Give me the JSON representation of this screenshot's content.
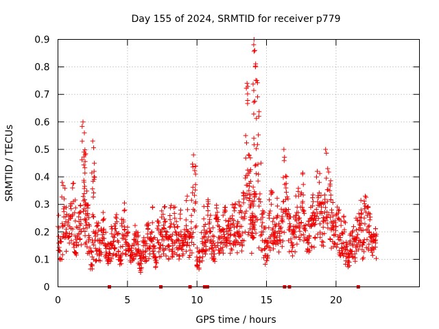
{
  "chart_data": {
    "type": "scatter",
    "title": "Day 155 of 2024, SRMTID for receiver p779",
    "xlabel": "GPS time / hours",
    "ylabel": "SRMTID / TECUs",
    "xlim": [
      0,
      26
    ],
    "ylim": [
      0,
      0.9
    ],
    "x_ticks": [
      0,
      5,
      10,
      15,
      20
    ],
    "x_tick_labels": [
      "0",
      "5",
      "10",
      "15",
      "20"
    ],
    "y_ticks": [
      0,
      0.1,
      0.2,
      0.3,
      0.4,
      0.5,
      0.6,
      0.7,
      0.8,
      0.9
    ],
    "y_tick_labels": [
      "0",
      "0.1",
      "0.2",
      "0.3",
      "0.4",
      "0.5",
      "0.6",
      "0.7",
      "0.8",
      "0.9"
    ],
    "grid": true,
    "legend": "none",
    "marker": "plus",
    "color": "#ee0000",
    "series": [
      {
        "name": "SRMTID",
        "x": [
          0.0,
          0.15,
          0.3,
          0.45,
          0.6,
          0.75,
          0.9,
          1.05,
          1.2,
          1.35,
          1.5,
          1.65,
          1.8,
          1.9,
          1.95,
          2.0,
          2.1,
          2.25,
          2.4,
          2.5,
          2.6,
          2.7,
          2.85,
          3.0,
          3.15,
          3.3,
          3.45,
          3.6,
          3.75,
          3.9,
          4.05,
          4.2,
          4.35,
          4.5,
          4.65,
          4.8,
          4.95,
          5.1,
          5.25,
          5.4,
          5.55,
          5.7,
          5.85,
          6.0,
          6.15,
          6.3,
          6.45,
          6.6,
          6.75,
          6.9,
          7.05,
          7.2,
          7.35,
          7.5,
          7.65,
          7.8,
          7.95,
          8.1,
          8.25,
          8.4,
          8.55,
          8.7,
          8.85,
          9.0,
          9.15,
          9.3,
          9.45,
          9.6,
          9.75,
          9.9,
          10.05,
          10.2,
          10.35,
          10.5,
          10.65,
          10.8,
          10.95,
          11.1,
          11.25,
          11.4,
          11.55,
          11.7,
          11.85,
          12.0,
          12.15,
          12.3,
          12.45,
          12.6,
          12.75,
          12.9,
          13.05,
          13.2,
          13.35,
          13.5,
          13.6,
          13.7,
          13.8,
          13.9,
          14.0,
          14.05,
          14.1,
          14.15,
          14.2,
          14.3,
          14.45,
          14.6,
          14.75,
          14.9,
          15.05,
          15.2,
          15.35,
          15.5,
          15.65,
          15.8,
          15.95,
          16.1,
          16.25,
          16.4,
          16.55,
          16.7,
          16.85,
          17.0,
          17.15,
          17.3,
          17.45,
          17.6,
          17.75,
          17.9,
          18.05,
          18.2,
          18.35,
          18.5,
          18.65,
          18.8,
          18.95,
          19.1,
          19.25,
          19.4,
          19.55,
          19.7,
          19.85,
          20.0,
          20.15,
          20.3,
          20.45,
          20.6,
          20.75,
          20.9,
          21.05,
          21.2,
          21.35,
          21.5,
          21.65,
          21.8,
          21.95,
          22.1,
          22.25,
          22.4,
          22.55,
          22.7,
          22.85
        ],
        "y": [
          0.22,
          0.13,
          0.38,
          0.32,
          0.21,
          0.18,
          0.25,
          0.36,
          0.27,
          0.15,
          0.19,
          0.23,
          0.6,
          0.56,
          0.48,
          0.3,
          0.26,
          0.18,
          0.08,
          0.53,
          0.42,
          0.14,
          0.17,
          0.12,
          0.16,
          0.21,
          0.14,
          0.1,
          0.12,
          0.15,
          0.18,
          0.25,
          0.13,
          0.11,
          0.19,
          0.28,
          0.16,
          0.14,
          0.09,
          0.12,
          0.17,
          0.13,
          0.08,
          0.07,
          0.15,
          0.11,
          0.18,
          0.14,
          0.2,
          0.12,
          0.09,
          0.16,
          0.14,
          0.21,
          0.29,
          0.18,
          0.15,
          0.22,
          0.13,
          0.25,
          0.17,
          0.14,
          0.2,
          0.12,
          0.19,
          0.33,
          0.15,
          0.26,
          0.48,
          0.41,
          0.1,
          0.09,
          0.13,
          0.22,
          0.17,
          0.31,
          0.2,
          0.15,
          0.12,
          0.25,
          0.18,
          0.14,
          0.21,
          0.28,
          0.16,
          0.24,
          0.19,
          0.23,
          0.3,
          0.2,
          0.27,
          0.22,
          0.34,
          0.55,
          0.74,
          0.48,
          0.42,
          0.3,
          0.18,
          0.22,
          0.9,
          0.86,
          0.8,
          0.75,
          0.62,
          0.45,
          0.2,
          0.14,
          0.11,
          0.25,
          0.3,
          0.19,
          0.22,
          0.26,
          0.17,
          0.24,
          0.5,
          0.36,
          0.32,
          0.22,
          0.15,
          0.18,
          0.26,
          0.33,
          0.29,
          0.41,
          0.21,
          0.13,
          0.16,
          0.22,
          0.31,
          0.18,
          0.42,
          0.38,
          0.29,
          0.24,
          0.5,
          0.43,
          0.35,
          0.27,
          0.19,
          0.22,
          0.25,
          0.17,
          0.14,
          0.2,
          0.11,
          0.09,
          0.13,
          0.15,
          0.12,
          0.18,
          0.21,
          0.28,
          0.16,
          0.33,
          0.26,
          0.2,
          0.18,
          0.14,
          0.16
        ],
        "band_min": [
          0.12,
          0.08,
          0.1,
          0.15,
          0.12,
          0.12,
          0.1,
          0.15,
          0.12,
          0.1,
          0.12,
          0.14,
          0.2,
          0.2,
          0.18,
          0.15,
          0.12,
          0.1,
          0.06,
          0.1,
          0.1,
          0.09,
          0.1,
          0.09,
          0.1,
          0.12,
          0.1,
          0.08,
          0.09,
          0.1,
          0.1,
          0.11,
          0.09,
          0.08,
          0.1,
          0.1,
          0.1,
          0.09,
          0.06,
          0.08,
          0.1,
          0.09,
          0.06,
          0.05,
          0.09,
          0.08,
          0.1,
          0.1,
          0.12,
          0.08,
          0.07,
          0.1,
          0.1,
          0.12,
          0.12,
          0.11,
          0.1,
          0.12,
          0.1,
          0.12,
          0.11,
          0.1,
          0.12,
          0.09,
          0.12,
          0.14,
          0.1,
          0.12,
          0.12,
          0.1,
          0.07,
          0.06,
          0.09,
          0.12,
          0.11,
          0.15,
          0.12,
          0.1,
          0.09,
          0.14,
          0.12,
          0.1,
          0.12,
          0.15,
          0.11,
          0.14,
          0.12,
          0.14,
          0.15,
          0.12,
          0.14,
          0.13,
          0.16,
          0.18,
          0.2,
          0.18,
          0.15,
          0.14,
          0.12,
          0.14,
          0.2,
          0.2,
          0.18,
          0.16,
          0.14,
          0.12,
          0.1,
          0.08,
          0.08,
          0.12,
          0.15,
          0.12,
          0.13,
          0.14,
          0.11,
          0.14,
          0.16,
          0.15,
          0.14,
          0.12,
          0.1,
          0.12,
          0.14,
          0.16,
          0.15,
          0.18,
          0.13,
          0.09,
          0.11,
          0.14,
          0.16,
          0.12,
          0.18,
          0.16,
          0.15,
          0.14,
          0.18,
          0.16,
          0.15,
          0.14,
          0.12,
          0.14,
          0.15,
          0.11,
          0.09,
          0.12,
          0.08,
          0.07,
          0.09,
          0.1,
          0.09,
          0.11,
          0.13,
          0.14,
          0.1,
          0.15,
          0.14,
          0.12,
          0.12,
          0.1,
          0.1
        ],
        "band_max": [
          0.28,
          0.22,
          0.42,
          0.38,
          0.3,
          0.28,
          0.33,
          0.4,
          0.34,
          0.24,
          0.28,
          0.3,
          0.61,
          0.58,
          0.52,
          0.38,
          0.32,
          0.26,
          0.14,
          0.55,
          0.45,
          0.2,
          0.24,
          0.18,
          0.22,
          0.28,
          0.2,
          0.16,
          0.18,
          0.22,
          0.26,
          0.32,
          0.2,
          0.18,
          0.27,
          0.32,
          0.22,
          0.21,
          0.15,
          0.18,
          0.24,
          0.2,
          0.14,
          0.13,
          0.22,
          0.17,
          0.25,
          0.2,
          0.3,
          0.19,
          0.15,
          0.24,
          0.22,
          0.28,
          0.31,
          0.25,
          0.22,
          0.3,
          0.2,
          0.3,
          0.24,
          0.2,
          0.28,
          0.2,
          0.26,
          0.36,
          0.22,
          0.32,
          0.5,
          0.45,
          0.16,
          0.14,
          0.2,
          0.3,
          0.24,
          0.33,
          0.27,
          0.22,
          0.19,
          0.32,
          0.26,
          0.21,
          0.29,
          0.33,
          0.23,
          0.3,
          0.26,
          0.3,
          0.36,
          0.28,
          0.34,
          0.3,
          0.4,
          0.62,
          0.76,
          0.52,
          0.49,
          0.4,
          0.3,
          0.32,
          0.9,
          0.88,
          0.82,
          0.78,
          0.66,
          0.5,
          0.3,
          0.22,
          0.18,
          0.32,
          0.35,
          0.26,
          0.3,
          0.33,
          0.24,
          0.3,
          0.51,
          0.42,
          0.38,
          0.3,
          0.22,
          0.26,
          0.34,
          0.37,
          0.35,
          0.43,
          0.3,
          0.2,
          0.24,
          0.3,
          0.35,
          0.26,
          0.44,
          0.42,
          0.36,
          0.32,
          0.51,
          0.46,
          0.42,
          0.34,
          0.26,
          0.28,
          0.3,
          0.24,
          0.2,
          0.26,
          0.17,
          0.14,
          0.2,
          0.22,
          0.18,
          0.26,
          0.28,
          0.34,
          0.22,
          0.34,
          0.3,
          0.27,
          0.24,
          0.2,
          0.22
        ]
      },
      {
        "name": "data-gap markers",
        "x": [
          3.7,
          7.4,
          9.5,
          10.55,
          10.75,
          16.3,
          16.65,
          21.6
        ],
        "y": [
          0,
          0,
          0,
          0,
          0,
          0,
          0,
          0
        ],
        "marker": "square"
      }
    ]
  }
}
